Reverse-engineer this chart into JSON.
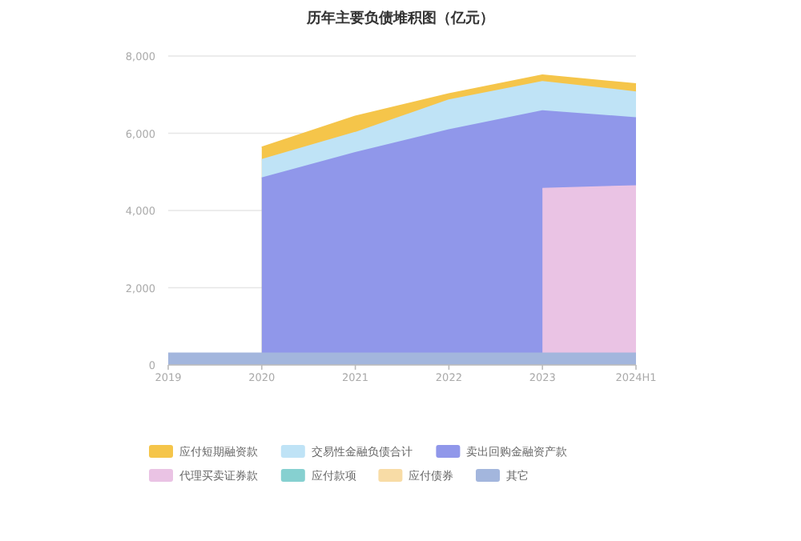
{
  "chart_data": {
    "type": "area",
    "title": "历年主要负债堆积图（亿元）",
    "categories": [
      "2019",
      "2020",
      "2021",
      "2022",
      "2023",
      "2024H1"
    ],
    "ylim": [
      0,
      8000
    ],
    "yticks": [
      0,
      {
        "value": 2000,
        "label": "2,000"
      },
      {
        "value": 4000,
        "label": "4,000"
      },
      {
        "value": 6000,
        "label": "6,000"
      },
      {
        "value": 8000,
        "label": "8,000"
      }
    ],
    "grid": "y",
    "legend": "bottom",
    "series": [
      {
        "name": "应付短期融资款",
        "color": "#f5c54a",
        "values": [
          null,
          5630,
          6430,
          7010,
          7500,
          7270
        ]
      },
      {
        "name": "交易性金融负债合计",
        "color": "#bfe3f6",
        "values": [
          null,
          5310,
          6010,
          6850,
          7330,
          7060
        ]
      },
      {
        "name": "卖出回购金融资产款",
        "color": "#9097ea",
        "values": [
          null,
          4830,
          5490,
          6080,
          6570,
          6390
        ]
      },
      {
        "name": "代理买卖证券款",
        "color": "#eac3e4",
        "values": [
          null,
          null,
          null,
          null,
          4560,
          4630
        ]
      },
      {
        "name": "应付款项",
        "color": "#86d0d0",
        "values": [
          null,
          null,
          null,
          null,
          null,
          null
        ]
      },
      {
        "name": "应付债券",
        "color": "#f8dca6",
        "values": [
          null,
          null,
          null,
          null,
          null,
          null
        ]
      },
      {
        "name": "其它",
        "color": "#a3b6dd",
        "values": [
          320,
          320,
          320,
          320,
          320,
          320
        ]
      }
    ]
  }
}
